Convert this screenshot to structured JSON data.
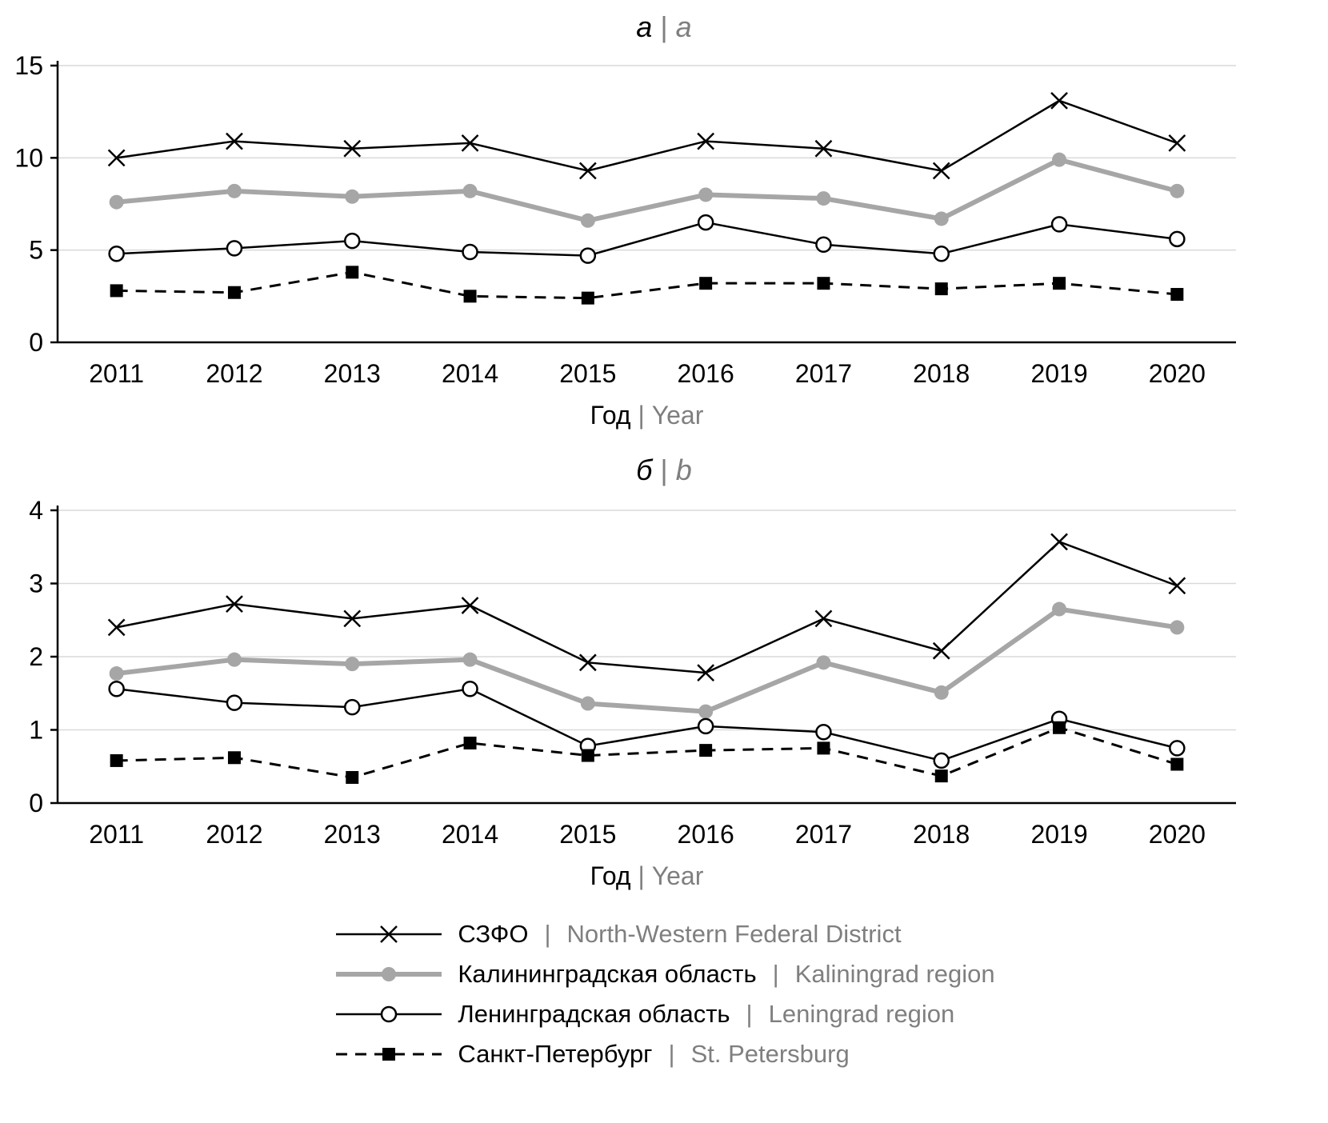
{
  "xlabel": {
    "ru": "Год",
    "sep": "|",
    "en": "Year"
  },
  "x_categories": [
    "2011",
    "2012",
    "2013",
    "2014",
    "2015",
    "2016",
    "2017",
    "2018",
    "2019",
    "2020"
  ],
  "colors": {
    "black": "#000000",
    "gray": "#a6a6a6",
    "gridline": "#d9d9d9",
    "text_gray": "#7f7f7f"
  },
  "chart_data": [
    {
      "type": "line",
      "title": {
        "ru": "а",
        "sep": "|",
        "en": "a"
      },
      "ylim": [
        0,
        15
      ],
      "yticks": [
        0,
        5,
        10,
        15
      ],
      "series": [
        {
          "name_ru": "СЗФО",
          "name_en": "North-Western Federal District",
          "color": "#000000",
          "marker": "x",
          "line_width": 2.5,
          "dash": null,
          "values": [
            10.0,
            10.9,
            10.5,
            10.8,
            9.3,
            10.9,
            10.5,
            9.3,
            13.1,
            10.8
          ]
        },
        {
          "name_ru": "Калининградская область",
          "name_en": "Kaliningrad region",
          "color": "#a6a6a6",
          "marker": "circle",
          "line_width": 6,
          "dash": null,
          "values": [
            7.6,
            8.2,
            7.9,
            8.2,
            6.6,
            8.0,
            7.8,
            6.7,
            9.9,
            8.2
          ]
        },
        {
          "name_ru": "Ленинградская область",
          "name_en": "Leningrad region",
          "color": "#000000",
          "marker": "circle-open",
          "line_width": 2.5,
          "dash": null,
          "values": [
            4.8,
            5.1,
            5.5,
            4.9,
            4.7,
            6.5,
            5.3,
            4.8,
            6.4,
            5.6
          ]
        },
        {
          "name_ru": "Санкт-Петербург",
          "name_en": "St. Petersburg",
          "color": "#000000",
          "marker": "square",
          "line_width": 3,
          "dash": "14 10",
          "values": [
            2.8,
            2.7,
            3.8,
            2.5,
            2.4,
            3.2,
            3.2,
            2.9,
            3.2,
            2.6
          ]
        }
      ]
    },
    {
      "type": "line",
      "title": {
        "ru": "б",
        "sep": "|",
        "en": "b"
      },
      "ylim": [
        0,
        4
      ],
      "yticks": [
        0,
        1,
        2,
        3,
        4
      ],
      "series": [
        {
          "name_ru": "СЗФО",
          "name_en": "North-Western Federal District",
          "color": "#000000",
          "marker": "x",
          "line_width": 2.5,
          "dash": null,
          "values": [
            2.4,
            2.72,
            2.52,
            2.7,
            1.92,
            1.78,
            2.52,
            2.08,
            3.57,
            2.97
          ]
        },
        {
          "name_ru": "Калининградская область",
          "name_en": "Kaliningrad region",
          "color": "#a6a6a6",
          "marker": "circle",
          "line_width": 6,
          "dash": null,
          "values": [
            1.77,
            1.96,
            1.9,
            1.96,
            1.36,
            1.25,
            1.92,
            1.51,
            2.65,
            2.4
          ]
        },
        {
          "name_ru": "Ленинградская область",
          "name_en": "Leningrad region",
          "color": "#000000",
          "marker": "circle-open",
          "line_width": 2.5,
          "dash": null,
          "values": [
            1.56,
            1.37,
            1.31,
            1.56,
            0.78,
            1.05,
            0.97,
            0.58,
            1.15,
            0.75
          ]
        },
        {
          "name_ru": "Санкт-Петербург",
          "name_en": "St. Petersburg",
          "color": "#000000",
          "marker": "square",
          "line_width": 3,
          "dash": "14 10",
          "values": [
            0.58,
            0.62,
            0.35,
            0.82,
            0.65,
            0.72,
            0.75,
            0.37,
            1.03,
            0.53
          ]
        }
      ]
    }
  ],
  "legend": {
    "sep": "|"
  }
}
